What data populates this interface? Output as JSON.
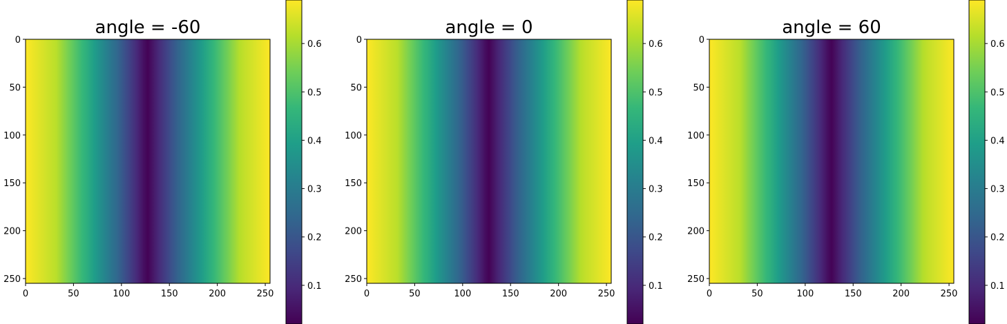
{
  "figure": {
    "colormap": "viridis",
    "colormap_stops": [
      "#440154",
      "#482878",
      "#3e4989",
      "#31688e",
      "#26828e",
      "#1f9e89",
      "#35b779",
      "#6ece58",
      "#b5de2b",
      "#fde725"
    ]
  },
  "chart_data": [
    {
      "type": "heatmap",
      "title": "angle = -60",
      "xlim": [
        0,
        255
      ],
      "ylim": [
        255,
        0
      ],
      "xticks": [
        0,
        50,
        100,
        150,
        200,
        250
      ],
      "yticks": [
        0,
        50,
        100,
        150,
        200,
        250
      ],
      "x_tick_labels": [
        "0",
        "50",
        "100",
        "150",
        "200",
        "250"
      ],
      "y_tick_labels": [
        "0",
        "50",
        "100",
        "150",
        "200",
        "250"
      ],
      "grid": false,
      "pattern": "vertical bands, value varies only with x; maximum at x=0 and x=255, minimum at x≈127",
      "x_profile": [
        0,
        32,
        64,
        96,
        127,
        160,
        192,
        224,
        255
      ],
      "values": [
        0.69,
        0.62,
        0.44,
        0.24,
        0.02,
        0.24,
        0.44,
        0.62,
        0.69
      ],
      "colorbar": {
        "min": 0.02,
        "max": 0.69,
        "ticks": [
          0.1,
          0.2,
          0.3,
          0.4,
          0.5,
          0.6
        ],
        "tick_labels": [
          "0.1",
          "0.2",
          "0.3",
          "0.4",
          "0.5",
          "0.6"
        ]
      }
    },
    {
      "type": "heatmap",
      "title": "angle = 0",
      "xlim": [
        0,
        255
      ],
      "ylim": [
        255,
        0
      ],
      "xticks": [
        0,
        50,
        100,
        150,
        200,
        250
      ],
      "yticks": [
        0,
        50,
        100,
        150,
        200,
        250
      ],
      "x_tick_labels": [
        "0",
        "50",
        "100",
        "150",
        "200",
        "250"
      ],
      "y_tick_labels": [
        "0",
        "50",
        "100",
        "150",
        "200",
        "250"
      ],
      "grid": false,
      "pattern": "vertical bands, value varies only with x; maximum at x=0 and x=255, minimum at x≈127",
      "x_profile": [
        0,
        32,
        64,
        96,
        127,
        160,
        192,
        224,
        255
      ],
      "values": [
        0.69,
        0.62,
        0.44,
        0.24,
        0.02,
        0.24,
        0.44,
        0.62,
        0.69
      ],
      "colorbar": {
        "min": 0.02,
        "max": 0.69,
        "ticks": [
          0.1,
          0.2,
          0.3,
          0.4,
          0.5,
          0.6
        ],
        "tick_labels": [
          "0.1",
          "0.2",
          "0.3",
          "0.4",
          "0.5",
          "0.6"
        ]
      }
    },
    {
      "type": "heatmap",
      "title": "angle = 60",
      "xlim": [
        0,
        255
      ],
      "ylim": [
        255,
        0
      ],
      "xticks": [
        0,
        50,
        100,
        150,
        200,
        250
      ],
      "yticks": [
        0,
        50,
        100,
        150,
        200,
        250
      ],
      "x_tick_labels": [
        "0",
        "50",
        "100",
        "150",
        "200",
        "250"
      ],
      "y_tick_labels": [
        "0",
        "50",
        "100",
        "150",
        "200",
        "250"
      ],
      "grid": false,
      "pattern": "vertical bands, value varies only with x; maximum at x=0 and x=255, minimum at x≈127",
      "x_profile": [
        0,
        32,
        64,
        96,
        127,
        160,
        192,
        224,
        255
      ],
      "values": [
        0.69,
        0.62,
        0.44,
        0.24,
        0.02,
        0.24,
        0.44,
        0.62,
        0.69
      ],
      "colorbar": {
        "min": 0.02,
        "max": 0.69,
        "ticks": [
          0.1,
          0.2,
          0.3,
          0.4,
          0.5,
          0.6
        ],
        "tick_labels": [
          "0.1",
          "0.2",
          "0.3",
          "0.4",
          "0.5",
          "0.6"
        ]
      }
    }
  ]
}
